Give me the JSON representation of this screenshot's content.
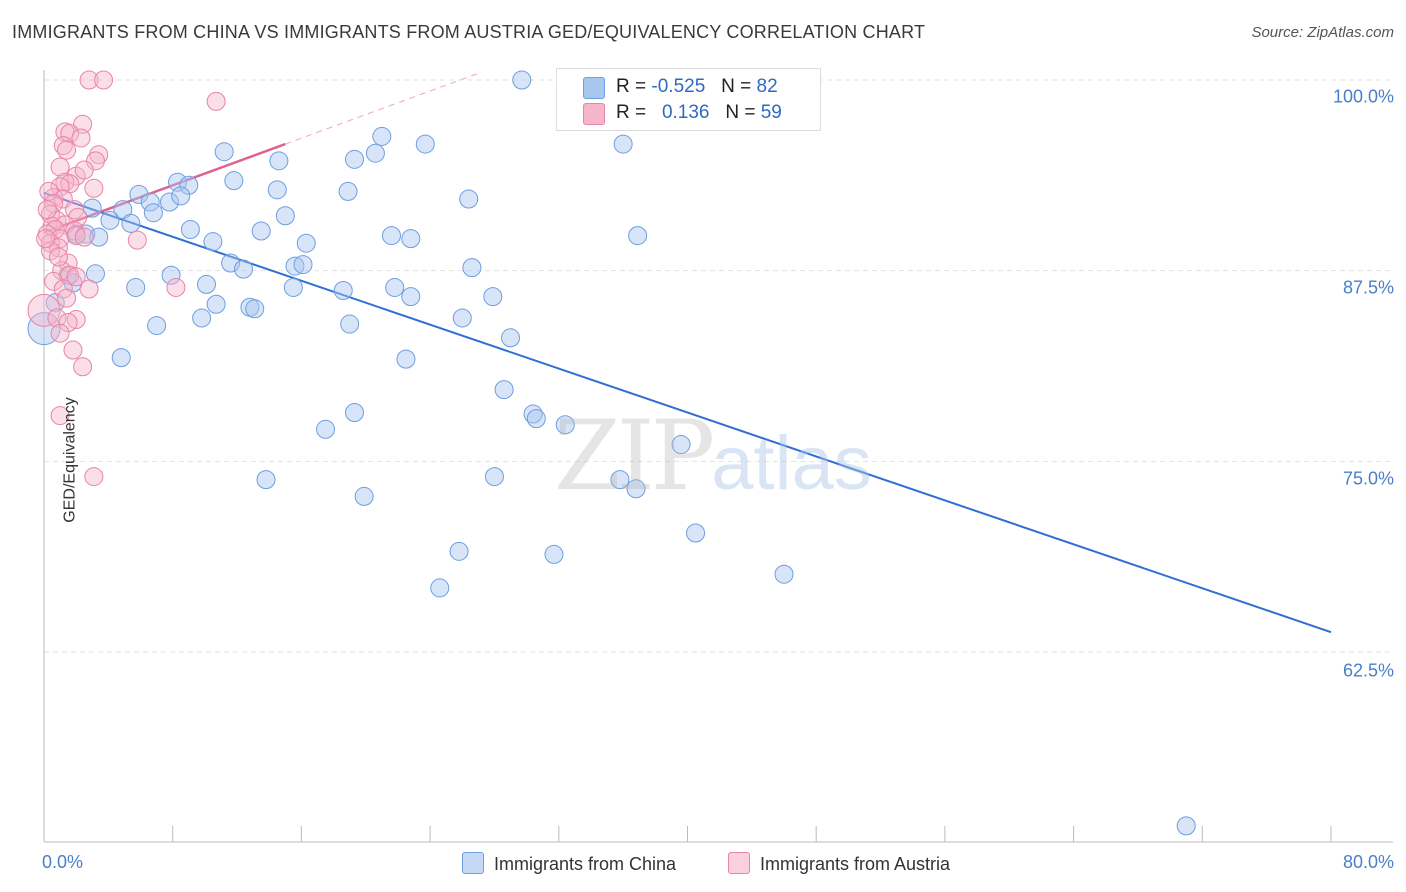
{
  "title": "IMMIGRANTS FROM CHINA VS IMMIGRANTS FROM AUSTRIA GED/EQUIVALENCY CORRELATION CHART",
  "source": "Source: ZipAtlas.com",
  "watermark": {
    "zip": "ZIP",
    "atlas": "atlas"
  },
  "legend_top": [
    {
      "r_label": "R =",
      "r_value": "-0.525",
      "n_label": "N =",
      "n_value": "82",
      "color": "#a9c6ef"
    },
    {
      "r_label": "R =",
      "r_value": "0.136",
      "n_label": "N =",
      "n_value": "59",
      "color": "#f5b6cb"
    }
  ],
  "legend_bottom": [
    "Immigrants from China",
    "Immigrants from Austria"
  ],
  "chart_data": {
    "type": "scatter",
    "title": "IMMIGRANTS FROM CHINA VS IMMIGRANTS FROM AUSTRIA GED/EQUIVALENCY CORRELATION CHART",
    "xlabel": "",
    "ylabel": "GED/Equivalency",
    "xlim": [
      0,
      80
    ],
    "ylim": [
      51.5,
      101.5
    ],
    "x_tick_labels": [
      "0.0%",
      "80.0%"
    ],
    "y_ticks": [
      100,
      87.5,
      75,
      62.5
    ],
    "y_tick_labels": [
      "100.0%",
      "87.5%",
      "75.0%",
      "62.5%"
    ],
    "grid": true,
    "legend_position": "top-center",
    "series": [
      {
        "name": "Immigrants from China",
        "color": "#a9c6ef",
        "stroke": "#6d9ee0",
        "trend": {
          "x": [
            0,
            80
          ],
          "y": [
            92.6,
            63.8
          ],
          "color": "#2f6ed4"
        },
        "points": [
          [
            29.7,
            100.0
          ],
          [
            33.0,
            100.0
          ],
          [
            11.2,
            95.3
          ],
          [
            14.6,
            94.7
          ],
          [
            19.3,
            94.8
          ],
          [
            20.6,
            95.2
          ],
          [
            21.0,
            96.3
          ],
          [
            23.7,
            95.8
          ],
          [
            36.0,
            95.8
          ],
          [
            8.3,
            93.3
          ],
          [
            9.0,
            93.1
          ],
          [
            11.8,
            93.4
          ],
          [
            14.5,
            92.8
          ],
          [
            18.9,
            92.7
          ],
          [
            5.9,
            92.5
          ],
          [
            6.6,
            92.0
          ],
          [
            7.8,
            92.0
          ],
          [
            8.5,
            92.4
          ],
          [
            26.4,
            92.2
          ],
          [
            3.0,
            91.6
          ],
          [
            4.9,
            91.5
          ],
          [
            6.8,
            91.3
          ],
          [
            15.0,
            91.1
          ],
          [
            4.1,
            90.8
          ],
          [
            5.4,
            90.6
          ],
          [
            9.1,
            90.2
          ],
          [
            13.5,
            90.1
          ],
          [
            21.6,
            89.8
          ],
          [
            22.8,
            89.6
          ],
          [
            2.0,
            89.9
          ],
          [
            2.6,
            89.9
          ],
          [
            3.4,
            89.7
          ],
          [
            16.3,
            89.3
          ],
          [
            36.9,
            89.8
          ],
          [
            11.6,
            88.0
          ],
          [
            12.4,
            87.6
          ],
          [
            15.6,
            87.8
          ],
          [
            16.1,
            87.9
          ],
          [
            26.6,
            87.7
          ],
          [
            1.5,
            87.2
          ],
          [
            1.8,
            86.7
          ],
          [
            5.7,
            86.4
          ],
          [
            10.1,
            86.6
          ],
          [
            15.5,
            86.4
          ],
          [
            18.6,
            86.2
          ],
          [
            21.8,
            86.4
          ],
          [
            22.8,
            85.8
          ],
          [
            27.9,
            85.8
          ],
          [
            10.7,
            85.3
          ],
          [
            12.8,
            85.1
          ],
          [
            13.1,
            85.0
          ],
          [
            9.8,
            84.4
          ],
          [
            19.0,
            84.0
          ],
          [
            26.0,
            84.4
          ],
          [
            7.0,
            83.9
          ],
          [
            29.0,
            83.1
          ],
          [
            0.0,
            83.7
          ],
          [
            4.8,
            81.8
          ],
          [
            22.5,
            81.7
          ],
          [
            28.6,
            79.7
          ],
          [
            19.3,
            78.2
          ],
          [
            30.4,
            78.1
          ],
          [
            30.6,
            77.8
          ],
          [
            32.4,
            77.4
          ],
          [
            17.5,
            77.1
          ],
          [
            39.6,
            76.1
          ],
          [
            13.8,
            73.8
          ],
          [
            28.0,
            74.0
          ],
          [
            35.8,
            73.8
          ],
          [
            36.8,
            73.2
          ],
          [
            19.9,
            72.7
          ],
          [
            40.5,
            70.3
          ],
          [
            25.8,
            69.1
          ],
          [
            31.7,
            68.9
          ],
          [
            24.6,
            66.7
          ],
          [
            46.0,
            67.6
          ],
          [
            71.0,
            51.1
          ],
          [
            36.0,
            99.2
          ],
          [
            0.7,
            85.4
          ],
          [
            3.2,
            87.3
          ],
          [
            10.5,
            89.4
          ],
          [
            7.9,
            87.2
          ]
        ]
      },
      {
        "name": "Immigrants from Austria",
        "color": "#f5b6cb",
        "stroke": "#e984a7",
        "trend": {
          "x": [
            0,
            15
          ],
          "y": [
            90.0,
            95.8
          ],
          "color": "#e0618f",
          "dash_extend_to_x": 27
        },
        "points": [
          [
            2.8,
            100.0
          ],
          [
            3.7,
            100.0
          ],
          [
            10.7,
            98.6
          ],
          [
            2.4,
            97.1
          ],
          [
            1.3,
            96.6
          ],
          [
            1.6,
            96.5
          ],
          [
            2.3,
            96.2
          ],
          [
            1.2,
            95.7
          ],
          [
            1.4,
            95.4
          ],
          [
            3.4,
            95.1
          ],
          [
            3.2,
            94.7
          ],
          [
            1.0,
            94.3
          ],
          [
            2.0,
            93.7
          ],
          [
            1.3,
            93.3
          ],
          [
            1.6,
            93.2
          ],
          [
            1.0,
            93.0
          ],
          [
            0.6,
            92.3
          ],
          [
            0.3,
            92.7
          ],
          [
            1.2,
            92.2
          ],
          [
            0.6,
            91.9
          ],
          [
            1.9,
            91.5
          ],
          [
            2.1,
            91.0
          ],
          [
            0.4,
            91.2
          ],
          [
            0.8,
            90.8
          ],
          [
            1.3,
            90.5
          ],
          [
            0.5,
            90.4
          ],
          [
            0.7,
            90.2
          ],
          [
            1.9,
            90.1
          ],
          [
            0.2,
            89.9
          ],
          [
            1.0,
            89.6
          ],
          [
            0.4,
            89.3
          ],
          [
            0.9,
            89.0
          ],
          [
            2.0,
            89.8
          ],
          [
            2.5,
            89.7
          ],
          [
            5.8,
            89.5
          ],
          [
            0.4,
            88.8
          ],
          [
            1.5,
            88.0
          ],
          [
            1.1,
            87.5
          ],
          [
            1.6,
            87.2
          ],
          [
            2.0,
            87.1
          ],
          [
            0.6,
            86.8
          ],
          [
            1.2,
            86.3
          ],
          [
            2.8,
            86.3
          ],
          [
            8.2,
            86.4
          ],
          [
            1.4,
            85.7
          ],
          [
            0.0,
            84.9
          ],
          [
            0.8,
            84.4
          ],
          [
            2.0,
            84.3
          ],
          [
            1.5,
            84.1
          ],
          [
            1.0,
            83.4
          ],
          [
            1.8,
            82.3
          ],
          [
            2.4,
            81.2
          ],
          [
            1.0,
            78.0
          ],
          [
            3.1,
            74.0
          ],
          [
            3.1,
            92.9
          ],
          [
            2.5,
            94.1
          ],
          [
            0.2,
            91.5
          ],
          [
            0.1,
            89.6
          ],
          [
            0.9,
            88.4
          ]
        ]
      }
    ]
  }
}
